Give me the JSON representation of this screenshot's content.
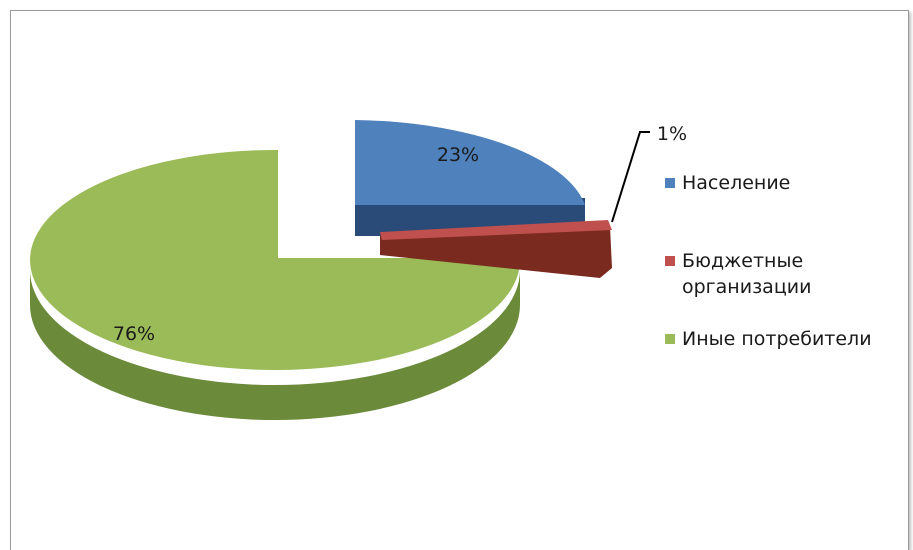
{
  "chart_data": {
    "type": "pie",
    "title": "",
    "three_d": true,
    "exploded": true,
    "categories": [
      "Население",
      "Бюджетные организации",
      "Иные потребители"
    ],
    "values": [
      23,
      1,
      76
    ],
    "data_labels": [
      "23%",
      "1%",
      "76%"
    ],
    "colors": [
      "#4f81bd",
      "#c0504d",
      "#9bbb59"
    ],
    "legend": {
      "position": "right",
      "items": [
        {
          "label": "Население",
          "color": "#4f81bd"
        },
        {
          "label": "Бюджетные\nорганизации",
          "color": "#c0504d"
        },
        {
          "label": "Иные потребители",
          "color": "#9bbb59"
        }
      ]
    }
  }
}
